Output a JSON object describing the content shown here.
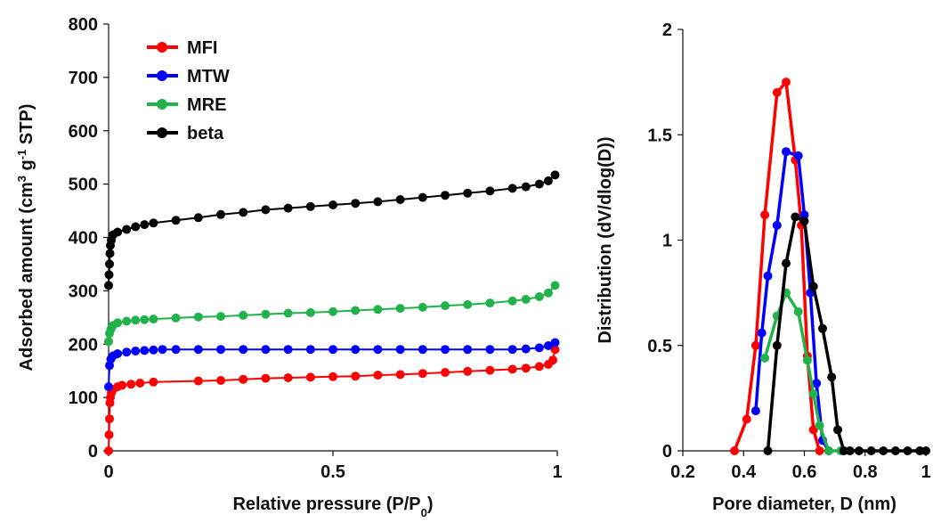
{
  "chart_data": [
    {
      "type": "line",
      "title": "",
      "xlabel": "Relative pressure (P/P",
      "xlabel_sub": "0",
      "xlabel_tail": ")",
      "ylabel": "Adsorbed amount (cm",
      "ylabel_sup1": "3",
      "ylabel_mid": " g",
      "ylabel_sup2": "-1",
      "ylabel_tail": " STP)",
      "xlim": [
        0,
        1
      ],
      "ylim": [
        0,
        800
      ],
      "xticks": [
        0,
        0.5,
        1
      ],
      "xtick_labels": [
        "0",
        "0.5",
        "1"
      ],
      "yticks": [
        0,
        100,
        200,
        300,
        400,
        500,
        600,
        700,
        800
      ],
      "ytick_labels": [
        "0",
        "100",
        "200",
        "300",
        "400",
        "500",
        "600",
        "700",
        "800"
      ],
      "grid": false,
      "legend": "top-left",
      "series": [
        {
          "name": "MFI",
          "color": "#ff0000",
          "points": [
            [
              0,
              0
            ],
            [
              0.001,
              30
            ],
            [
              0.002,
              60
            ],
            [
              0.003,
              90
            ],
            [
              0.004,
              100
            ],
            [
              0.006,
              108
            ],
            [
              0.01,
              115
            ],
            [
              0.02,
              120
            ],
            [
              0.03,
              123
            ],
            [
              0.05,
              125
            ],
            [
              0.07,
              127
            ],
            [
              0.1,
              129
            ],
            [
              0.2,
              131
            ],
            [
              0.25,
              132
            ],
            [
              0.3,
              134
            ],
            [
              0.35,
              136
            ],
            [
              0.4,
              137
            ],
            [
              0.45,
              138
            ],
            [
              0.5,
              139
            ],
            [
              0.55,
              140
            ],
            [
              0.6,
              142
            ],
            [
              0.65,
              143
            ],
            [
              0.7,
              145
            ],
            [
              0.75,
              147
            ],
            [
              0.8,
              149
            ],
            [
              0.85,
              151
            ],
            [
              0.9,
              153
            ],
            [
              0.93,
              155
            ],
            [
              0.96,
              158
            ],
            [
              0.98,
              162
            ],
            [
              0.99,
              170
            ],
            [
              0.995,
              190
            ]
          ]
        },
        {
          "name": "MTW",
          "color": "#0000ff",
          "points": [
            [
              0,
              120
            ],
            [
              0.002,
              160
            ],
            [
              0.005,
              172
            ],
            [
              0.01,
              178
            ],
            [
              0.02,
              182
            ],
            [
              0.04,
              185
            ],
            [
              0.06,
              187
            ],
            [
              0.08,
              188
            ],
            [
              0.1,
              189
            ],
            [
              0.12,
              190
            ],
            [
              0.15,
              190
            ],
            [
              0.2,
              190
            ],
            [
              0.25,
              190
            ],
            [
              0.3,
              190
            ],
            [
              0.35,
              190
            ],
            [
              0.4,
              190
            ],
            [
              0.45,
              190
            ],
            [
              0.5,
              190
            ],
            [
              0.55,
              190
            ],
            [
              0.6,
              190
            ],
            [
              0.65,
              190
            ],
            [
              0.7,
              190
            ],
            [
              0.75,
              190
            ],
            [
              0.8,
              190
            ],
            [
              0.85,
              190
            ],
            [
              0.9,
              190
            ],
            [
              0.93,
              191
            ],
            [
              0.96,
              193
            ],
            [
              0.98,
              197
            ],
            [
              0.995,
              203
            ]
          ]
        },
        {
          "name": "MRE",
          "color": "#22b24c",
          "points": [
            [
              0,
              205
            ],
            [
              0.002,
              220
            ],
            [
              0.005,
              228
            ],
            [
              0.01,
              235
            ],
            [
              0.02,
              240
            ],
            [
              0.04,
              243
            ],
            [
              0.06,
              245
            ],
            [
              0.08,
              246
            ],
            [
              0.1,
              247
            ],
            [
              0.15,
              249
            ],
            [
              0.2,
              251
            ],
            [
              0.25,
              252
            ],
            [
              0.3,
              254
            ],
            [
              0.35,
              256
            ],
            [
              0.4,
              258
            ],
            [
              0.45,
              259
            ],
            [
              0.5,
              261
            ],
            [
              0.55,
              263
            ],
            [
              0.6,
              265
            ],
            [
              0.65,
              267
            ],
            [
              0.7,
              269
            ],
            [
              0.75,
              272
            ],
            [
              0.8,
              274
            ],
            [
              0.85,
              277
            ],
            [
              0.9,
              281
            ],
            [
              0.93,
              284
            ],
            [
              0.96,
              289
            ],
            [
              0.98,
              296
            ],
            [
              0.995,
              310
            ]
          ]
        },
        {
          "name": "beta",
          "color": "#000000",
          "points": [
            [
              0,
              310
            ],
            [
              0.001,
              330
            ],
            [
              0.002,
              350
            ],
            [
              0.003,
              370
            ],
            [
              0.004,
              385
            ],
            [
              0.006,
              395
            ],
            [
              0.01,
              405
            ],
            [
              0.02,
              410
            ],
            [
              0.04,
              415
            ],
            [
              0.06,
              420
            ],
            [
              0.08,
              424
            ],
            [
              0.1,
              427
            ],
            [
              0.15,
              432
            ],
            [
              0.2,
              437
            ],
            [
              0.25,
              443
            ],
            [
              0.3,
              447
            ],
            [
              0.35,
              452
            ],
            [
              0.4,
              455
            ],
            [
              0.45,
              458
            ],
            [
              0.5,
              461
            ],
            [
              0.55,
              464
            ],
            [
              0.6,
              467
            ],
            [
              0.65,
              471
            ],
            [
              0.7,
              475
            ],
            [
              0.75,
              479
            ],
            [
              0.8,
              483
            ],
            [
              0.85,
              487
            ],
            [
              0.9,
              492
            ],
            [
              0.93,
              495
            ],
            [
              0.96,
              500
            ],
            [
              0.98,
              506
            ],
            [
              0.995,
              517
            ]
          ]
        }
      ]
    },
    {
      "type": "line",
      "title": "",
      "xlabel": "Pore diameter, D (nm)",
      "ylabel": "Distribution (dV/dlog(D))",
      "xlim": [
        0.2,
        1.0
      ],
      "ylim": [
        0,
        2
      ],
      "xticks": [
        0.2,
        0.4,
        0.6,
        0.8,
        1.0
      ],
      "xtick_labels": [
        "0.2",
        "0.4",
        "0.6",
        "0.8",
        "1"
      ],
      "yticks": [
        0,
        0.5,
        1,
        1.5,
        2
      ],
      "ytick_labels": [
        "0",
        "0.5",
        "1",
        "1.5",
        "2"
      ],
      "grid": false,
      "legend": "none",
      "series": [
        {
          "color": "#ff0000",
          "points": [
            [
              0.37,
              0
            ],
            [
              0.41,
              0.15
            ],
            [
              0.44,
              0.5
            ],
            [
              0.47,
              1.12
            ],
            [
              0.51,
              1.7
            ],
            [
              0.54,
              1.75
            ],
            [
              0.57,
              1.38
            ],
            [
              0.59,
              1.07
            ],
            [
              0.61,
              0.45
            ],
            [
              0.63,
              0.1
            ],
            [
              0.65,
              0
            ]
          ]
        },
        {
          "color": "#0000ff",
          "points": [
            [
              0.44,
              0.19
            ],
            [
              0.46,
              0.56
            ],
            [
              0.48,
              0.83
            ],
            [
              0.51,
              1.07
            ],
            [
              0.54,
              1.42
            ],
            [
              0.58,
              1.4
            ],
            [
              0.6,
              1.12
            ],
            [
              0.62,
              0.75
            ],
            [
              0.64,
              0.32
            ],
            [
              0.66,
              0.05
            ],
            [
              0.68,
              0
            ]
          ]
        },
        {
          "color": "#22b24c",
          "points": [
            [
              0.47,
              0.44
            ],
            [
              0.51,
              0.64
            ],
            [
              0.54,
              0.75
            ],
            [
              0.58,
              0.66
            ],
            [
              0.61,
              0.43
            ],
            [
              0.63,
              0.27
            ],
            [
              0.65,
              0.12
            ],
            [
              0.68,
              0
            ],
            [
              0.72,
              0
            ]
          ]
        },
        {
          "color": "#000000",
          "points": [
            [
              0.48,
              0
            ],
            [
              0.51,
              0.5
            ],
            [
              0.54,
              0.89
            ],
            [
              0.57,
              1.11
            ],
            [
              0.6,
              1.09
            ],
            [
              0.63,
              0.78
            ],
            [
              0.66,
              0.58
            ],
            [
              0.69,
              0.35
            ],
            [
              0.71,
              0.1
            ],
            [
              0.73,
              0
            ],
            [
              0.75,
              0
            ],
            [
              0.78,
              0
            ],
            [
              0.82,
              0
            ],
            [
              0.86,
              0
            ],
            [
              0.9,
              0
            ],
            [
              0.94,
              0
            ],
            [
              0.98,
              0
            ],
            [
              1.0,
              0
            ]
          ]
        }
      ]
    }
  ]
}
